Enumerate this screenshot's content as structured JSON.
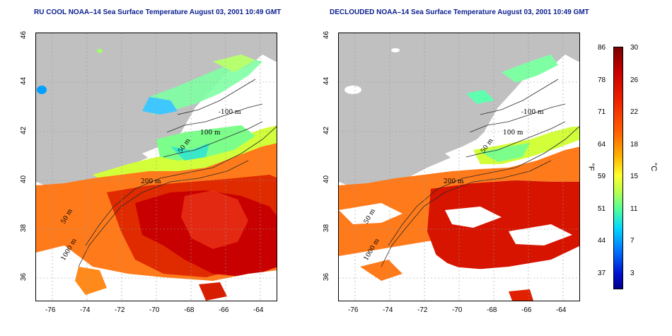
{
  "titles": {
    "left": "RU COOL NOAA–14 Sea Surface Temperature August 03, 2001 10:49 GMT",
    "right": "DECLOUDED NOAA–14 Sea Surface Temperature August 03, 2001 10:49 GMT"
  },
  "axes": {
    "lon_ticks": [
      "-76",
      "-74",
      "-72",
      "-70",
      "-68",
      "-66",
      "-64"
    ],
    "lat_ticks": [
      "46",
      "44",
      "42",
      "40",
      "38",
      "36"
    ],
    "lat_range": [
      35,
      46
    ],
    "lon_range": [
      -77.1,
      -63.1
    ]
  },
  "contours": {
    "left": [
      "-100 m",
      "100 m",
      "50 m",
      "200 m",
      "50 m",
      "1000 m"
    ],
    "right": [
      "-100 m",
      "100 m",
      "50 m",
      "200 m",
      "50 m",
      "1000 m"
    ]
  },
  "colorbar": {
    "fahrenheit_unit": "°F",
    "celsius_unit": "°C",
    "fahrenheit_ticks": [
      "86",
      "78",
      "71",
      "64",
      "59",
      "51",
      "44",
      "37"
    ],
    "celsius_ticks": [
      "30",
      "26",
      "22",
      "18",
      "15",
      "11",
      "7",
      "3"
    ],
    "celsius_range": [
      0,
      30
    ],
    "fahrenheit_range": [
      32,
      86
    ]
  },
  "colors": {
    "land": "#c0c0c0",
    "cloud_mask": "#ffffff",
    "title_text": "#0b1f8f",
    "contour": "#2a2a2a"
  }
}
